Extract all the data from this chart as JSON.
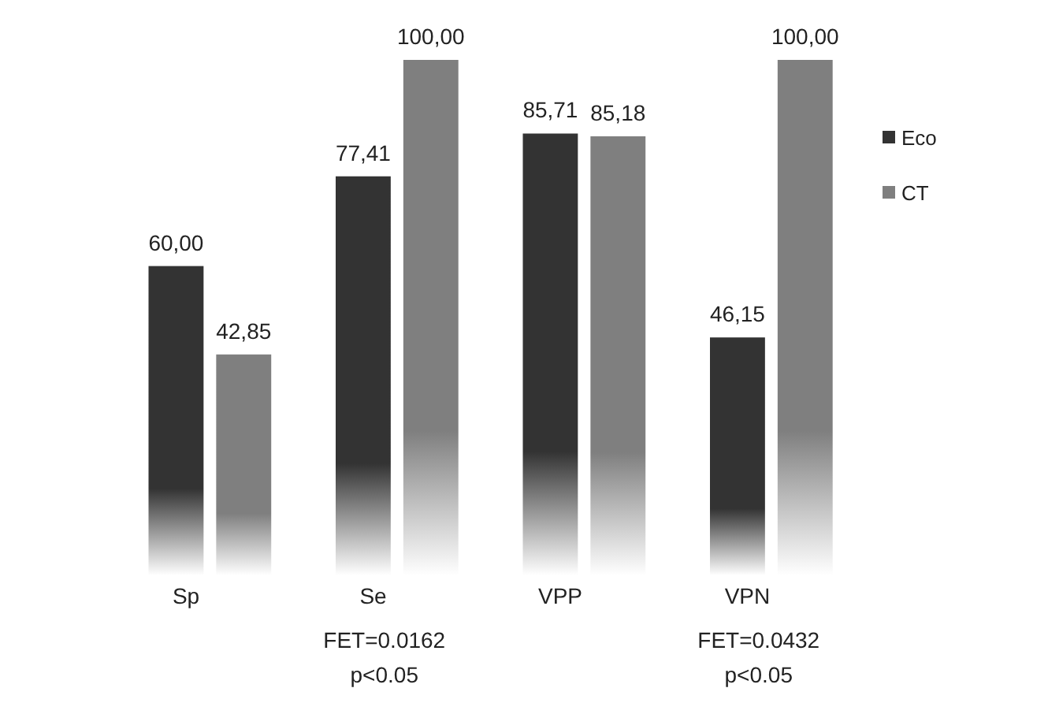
{
  "chart_data": {
    "type": "bar",
    "categories": [
      "Sp",
      "Se",
      "VPP",
      "VPN"
    ],
    "series": [
      {
        "name": "Eco",
        "color": "#333333",
        "values": [
          60,
          77.41,
          85.71,
          46.15
        ],
        "value_labels": [
          "60,00",
          "77,41",
          "85,71",
          "46,15"
        ]
      },
      {
        "name": "CT",
        "color": "#7f7f7f",
        "values": [
          42.85,
          100,
          85.18,
          100
        ],
        "value_labels": [
          "42,85",
          "100,00",
          "85,18",
          "100,00"
        ]
      }
    ],
    "ylim": [
      0,
      100
    ],
    "tick_labels": "x",
    "legend": "right",
    "grid": false,
    "annotations": [
      "FET=0.0162\np<0.05",
      "FET=0.0432\np<0.05"
    ]
  }
}
